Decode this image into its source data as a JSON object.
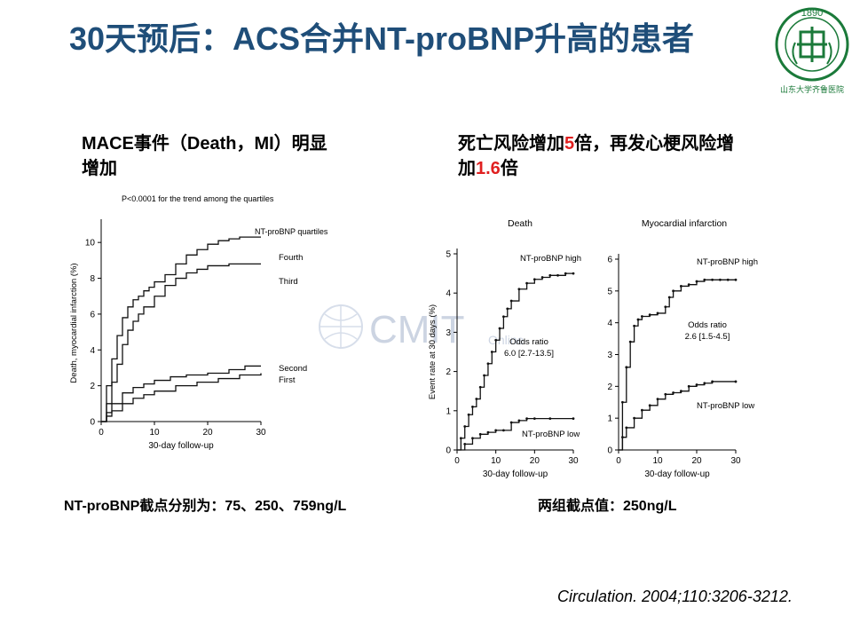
{
  "slide": {
    "title": "30天预后：ACS合并NT-proBNP升高的患者",
    "left_note": "MACE事件（Death，MI）明显增加",
    "right_note": {
      "p1": "死亡风险增加",
      "n1": "5",
      "p2": "倍，再发心梗风险增加",
      "n2": "1.6",
      "p3": "倍"
    },
    "left_cut": "NT-proBNP截点分别为：75、250、759ng/L",
    "right_cut": "两组截点值：250ng/L",
    "citation": "Circulation. 2004;110:3206-3212.",
    "watermark": {
      "main": "CMIT",
      "sub": "Online"
    },
    "logo": {
      "year": "1890",
      "ring": "山东大学齐鲁医院"
    }
  },
  "chart_data": [
    {
      "type": "line",
      "title": "P<0.0001 for the trend among the quartiles",
      "legend_title": "NT-proBNP quartiles",
      "xlabel": "30-day follow-up",
      "ylabel": "Death, myocardial infarction (%)",
      "xlim": [
        0,
        30
      ],
      "ylim": [
        0,
        11
      ],
      "xticks": [
        0,
        10,
        20,
        30
      ],
      "yticks": [
        0,
        2,
        4,
        6,
        8,
        10
      ],
      "series": [
        {
          "name": "Fourth",
          "x": [
            0,
            1,
            2,
            3,
            4,
            5,
            6,
            7,
            8,
            9,
            10,
            12,
            14,
            16,
            18,
            20,
            22,
            24,
            26,
            28,
            30
          ],
          "y": [
            0,
            2.0,
            3.5,
            4.8,
            5.8,
            6.4,
            6.8,
            7.0,
            7.3,
            7.5,
            7.8,
            8.2,
            8.8,
            9.3,
            9.6,
            9.9,
            10.1,
            10.2,
            10.3,
            10.3,
            10.3
          ]
        },
        {
          "name": "Third",
          "x": [
            0,
            1,
            2,
            3,
            4,
            5,
            6,
            7,
            8,
            10,
            12,
            14,
            16,
            18,
            20,
            24,
            30
          ],
          "y": [
            0,
            1.0,
            2.2,
            3.2,
            4.3,
            5.1,
            5.6,
            6.0,
            6.4,
            7.0,
            7.6,
            8.0,
            8.3,
            8.5,
            8.7,
            8.8,
            8.8
          ]
        },
        {
          "name": "Second",
          "x": [
            0,
            1,
            2,
            4,
            6,
            8,
            10,
            13,
            16,
            20,
            24,
            27,
            30
          ],
          "y": [
            0,
            0.5,
            1.0,
            1.6,
            1.9,
            2.1,
            2.3,
            2.5,
            2.6,
            2.7,
            2.9,
            3.1,
            3.1
          ]
        },
        {
          "name": "First",
          "x": [
            0,
            1,
            2,
            4,
            6,
            8,
            10,
            14,
            18,
            22,
            26,
            30
          ],
          "y": [
            0,
            0.3,
            0.6,
            1.0,
            1.3,
            1.5,
            1.7,
            2.0,
            2.2,
            2.4,
            2.6,
            2.7
          ]
        }
      ]
    },
    {
      "type": "line",
      "title": "Death",
      "xlabel": "30-day follow-up",
      "ylabel": "Event rate at 30 days (%)",
      "xlim": [
        0,
        30
      ],
      "ylim": [
        0,
        5
      ],
      "xticks": [
        0,
        10,
        20,
        30
      ],
      "yticks": [
        0,
        1,
        2,
        3,
        4,
        5
      ],
      "annotation": {
        "label": "Odds ratio",
        "value": "6.0 [2.7-13.5]"
      },
      "series": [
        {
          "name": "NT-proBNP high",
          "x": [
            0,
            1,
            2,
            3,
            4,
            5,
            6,
            7,
            8,
            9,
            10,
            11,
            12,
            13,
            14,
            16,
            18,
            20,
            22,
            24,
            26,
            28,
            30
          ],
          "y": [
            0,
            0.3,
            0.6,
            0.9,
            1.1,
            1.3,
            1.6,
            1.9,
            2.2,
            2.5,
            2.8,
            3.1,
            3.4,
            3.6,
            3.8,
            4.1,
            4.25,
            4.35,
            4.4,
            4.45,
            4.45,
            4.5,
            4.5
          ]
        },
        {
          "name": "NT-proBNP low",
          "x": [
            0,
            2,
            4,
            6,
            8,
            10,
            12,
            14,
            16,
            18,
            20,
            24,
            30
          ],
          "y": [
            0,
            0.15,
            0.3,
            0.4,
            0.45,
            0.5,
            0.5,
            0.7,
            0.75,
            0.8,
            0.8,
            0.8,
            0.8
          ]
        }
      ]
    },
    {
      "type": "line",
      "title": "Myocardial infarction",
      "xlabel": "30-day follow-up",
      "ylabel": "",
      "xlim": [
        0,
        30
      ],
      "ylim": [
        0,
        6
      ],
      "xticks": [
        0,
        10,
        20,
        30
      ],
      "yticks": [
        0,
        1,
        2,
        3,
        4,
        5,
        6
      ],
      "annotation": {
        "label": "Odds ratio",
        "value": "2.6 [1.5-4.5]"
      },
      "series": [
        {
          "name": "NT-proBNP high",
          "x": [
            0,
            1,
            2,
            3,
            4,
            5,
            6,
            8,
            10,
            12,
            13,
            14,
            16,
            18,
            20,
            22,
            24,
            26,
            28,
            30
          ],
          "y": [
            0,
            1.5,
            2.6,
            3.4,
            3.9,
            4.1,
            4.2,
            4.25,
            4.3,
            4.5,
            4.8,
            5.0,
            5.15,
            5.2,
            5.3,
            5.35,
            5.35,
            5.35,
            5.35,
            5.35
          ]
        },
        {
          "name": "NT-proBNP low",
          "x": [
            0,
            1,
            2,
            4,
            6,
            8,
            10,
            12,
            14,
            16,
            18,
            20,
            22,
            24,
            30
          ],
          "y": [
            0,
            0.4,
            0.7,
            1.0,
            1.25,
            1.4,
            1.6,
            1.75,
            1.8,
            1.85,
            2.0,
            2.05,
            2.1,
            2.15,
            2.15
          ]
        }
      ]
    }
  ]
}
